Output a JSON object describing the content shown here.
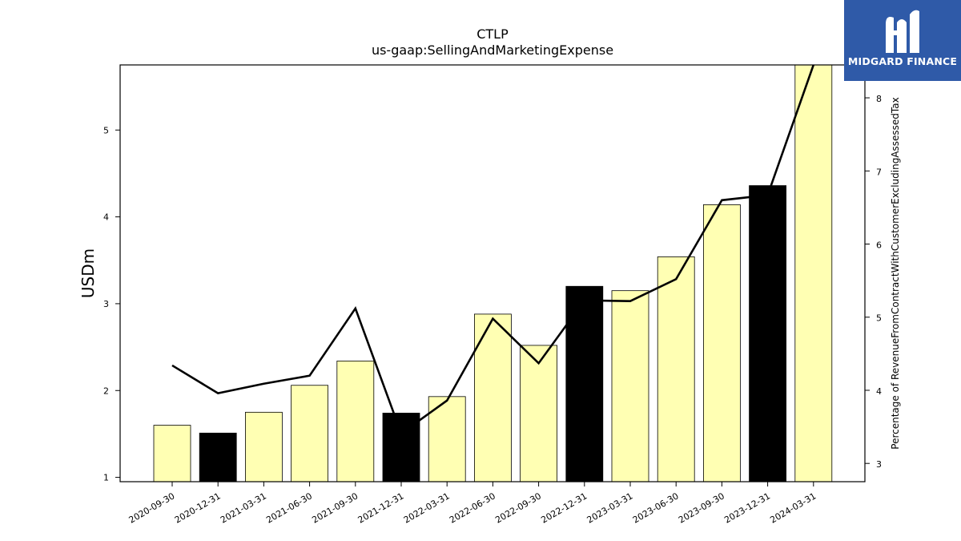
{
  "chart_data": {
    "type": "bar",
    "title": "CTLP",
    "subtitle": "us-gaap:SellingAndMarketingExpense",
    "ylabel": "USDm",
    "ylabel_right": "Percentage of RevenueFromContractWithCustomerExcludingAssessedTax",
    "ylim": [
      0.95,
      5.75
    ],
    "ylim_right": [
      2.75,
      8.45
    ],
    "yticks": [
      1,
      2,
      3,
      4,
      5
    ],
    "yticks_right": [
      3,
      4,
      5,
      6,
      7,
      8
    ],
    "categories": [
      "2020-09-30",
      "2020-12-31",
      "2021-03-31",
      "2021-06-30",
      "2021-09-30",
      "2021-12-31",
      "2022-03-31",
      "2022-06-30",
      "2022-09-30",
      "2022-12-31",
      "2023-03-31",
      "2023-06-30",
      "2023-09-30",
      "2023-12-31",
      "2024-03-31"
    ],
    "series": [
      {
        "values": [
          1.6,
          1.51,
          1.75,
          2.06,
          2.34,
          1.74,
          1.93,
          2.88,
          2.52,
          3.2,
          3.15,
          3.54,
          4.14,
          4.36,
          5.75
        ],
        "colors": [
          "#ffffb3",
          "#000000",
          "#ffffb3",
          "#ffffb3",
          "#ffffb3",
          "#000000",
          "#ffffb3",
          "#ffffb3",
          "#ffffb3",
          "#000000",
          "#ffffb3",
          "#ffffb3",
          "#ffffb3",
          "#000000",
          "#ffffb3"
        ]
      },
      {
        "type": "line",
        "axis": "right",
        "values": [
          4.34,
          3.96,
          4.09,
          4.2,
          5.12,
          3.41,
          3.86,
          4.98,
          4.37,
          5.23,
          5.22,
          5.52,
          6.6,
          6.67,
          8.45
        ]
      }
    ],
    "grid": false,
    "legend": "none"
  },
  "colors": {
    "bar_fill": "#ffffb3",
    "bar_highlight": "#000000",
    "line": "#000000",
    "logo_bg": "#2f5aa8"
  },
  "logo": {
    "text": "MIDGARD FINANCE"
  }
}
